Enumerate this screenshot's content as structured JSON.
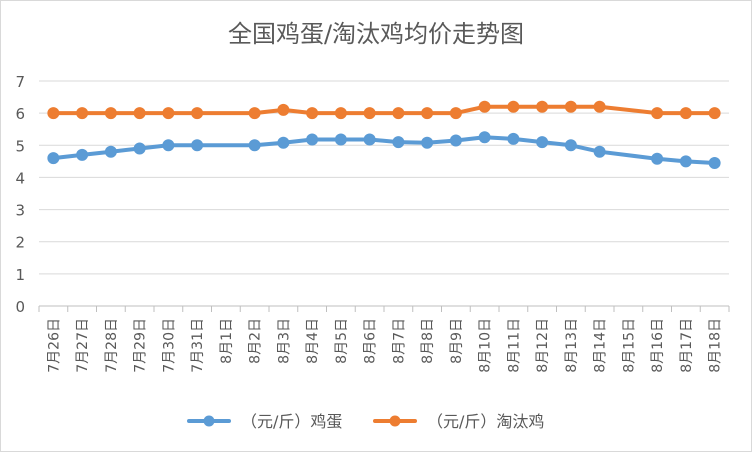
{
  "chart_data": {
    "type": "line",
    "title": "全国鸡蛋/淘汰鸡均价走势图",
    "xlabel": "",
    "ylabel": "",
    "ylim": [
      0,
      7
    ],
    "yticks": [
      "0",
      "1",
      "2",
      "3",
      "4",
      "5",
      "6",
      "7"
    ],
    "grid": true,
    "legend_position": "bottom",
    "categories": [
      "7月26日",
      "7月27日",
      "7月28日",
      "7月29日",
      "7月30日",
      "7月31日",
      "8月1日",
      "8月2日",
      "8月3日",
      "8月4日",
      "8月5日",
      "8月6日",
      "8月7日",
      "8月8日",
      "8月9日",
      "8月10日",
      "8月11日",
      "8月12日",
      "8月13日",
      "8月14日",
      "8月15日",
      "8月16日",
      "8月17日",
      "8月18日"
    ],
    "series": [
      {
        "name": "（元/斤）鸡蛋",
        "color": "#5b9bd5",
        "values": [
          4.6,
          4.7,
          4.8,
          4.9,
          5.0,
          5.0,
          null,
          5.0,
          5.08,
          5.18,
          5.18,
          5.18,
          5.1,
          5.08,
          5.15,
          5.25,
          5.2,
          5.1,
          5.0,
          4.8,
          null,
          4.58,
          4.5,
          4.45
        ]
      },
      {
        "name": "（元/斤）淘汰鸡",
        "color": "#ed7d31",
        "values": [
          6.0,
          6.0,
          6.0,
          6.0,
          6.0,
          6.0,
          null,
          6.0,
          6.1,
          6.0,
          6.0,
          6.0,
          6.0,
          6.0,
          6.0,
          6.2,
          6.2,
          6.2,
          6.2,
          6.2,
          null,
          6.0,
          6.0,
          6.0
        ]
      }
    ]
  }
}
